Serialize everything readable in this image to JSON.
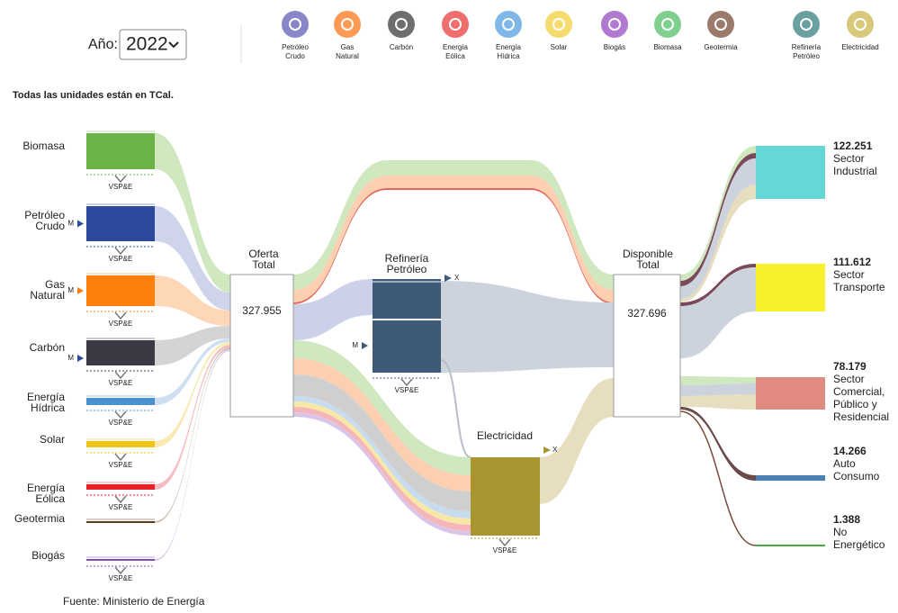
{
  "header": {
    "year_label": "Año:",
    "year": "2022",
    "legend": [
      [
        "Petróleo",
        "Crudo"
      ],
      [
        "Gas",
        "Natural"
      ],
      [
        "Carbón"
      ],
      [
        "Energía",
        "Eólica"
      ],
      [
        "Energía",
        "Hídrica"
      ],
      [
        "Solar"
      ],
      [
        "Biogás"
      ],
      [
        "Biomasa"
      ],
      [
        "Geotermia"
      ],
      [
        "Refinería",
        "Petróleo"
      ],
      [
        "Electricidad"
      ]
    ]
  },
  "note": "Todas las unidades están en TCal.",
  "markers": {
    "vspe": "VSP&E",
    "m": "M",
    "x": "X"
  },
  "sources": [
    [
      "Biomasa"
    ],
    [
      "Petróleo",
      "Crudo"
    ],
    [
      "Gas",
      "Natural"
    ],
    [
      "Carbón"
    ],
    [
      "Energía",
      "Hídrica"
    ],
    [
      "Solar"
    ],
    [
      "Energía",
      "Eólica"
    ],
    [
      "Geotermia"
    ],
    [
      "Biogás"
    ]
  ],
  "nodes": {
    "oferta": {
      "label": [
        "Oferta",
        "Total"
      ],
      "value": "327.955"
    },
    "refineria": {
      "label": [
        "Refinería",
        "Petróleo"
      ]
    },
    "electricidad": {
      "label": [
        "Electricidad"
      ]
    },
    "disponible": {
      "label": [
        "Disponible",
        "Total"
      ],
      "value": "327.696"
    }
  },
  "sinks": [
    {
      "value": "122.251",
      "label": [
        "Sector",
        "Industrial"
      ]
    },
    {
      "value": "111.612",
      "label": [
        "Sector",
        "Transporte"
      ]
    },
    {
      "value": "78.179",
      "label": [
        "Sector",
        "Comercial,",
        "Público y",
        "Residencial"
      ]
    },
    {
      "value": "14.266",
      "label": [
        "Auto",
        "Consumo"
      ]
    },
    {
      "value": "1.388",
      "label": [
        "No",
        "Energético"
      ]
    }
  ],
  "footer": "Fuente: Ministerio de Energía"
}
